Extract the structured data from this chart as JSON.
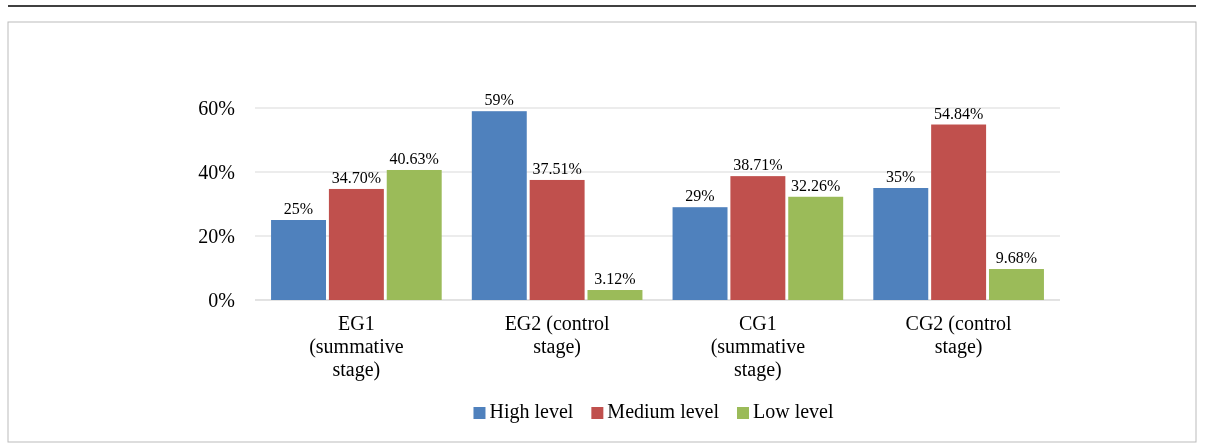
{
  "chart_data": {
    "type": "bar",
    "categories": [
      "EG1 (summative stage)",
      "EG2 (control stage)",
      "CG1 (summative stage)",
      "CG2 (control stage)"
    ],
    "series": [
      {
        "name": "High level",
        "color": "#4f81bd",
        "values": [
          25,
          59,
          29,
          35
        ],
        "value_labels": [
          "25%",
          "59%",
          "29%",
          "35%"
        ]
      },
      {
        "name": "Medium level",
        "color": "#c0504d",
        "values": [
          34.7,
          37.51,
          38.71,
          54.84
        ],
        "value_labels": [
          "34.70%",
          "37.51%",
          "38.71%",
          "54.84%"
        ]
      },
      {
        "name": "Low level",
        "color": "#9bbb59",
        "values": [
          40.63,
          3.12,
          32.26,
          9.68
        ],
        "value_labels": [
          "40.63%",
          "3.12%",
          "32.26%",
          "9.68%"
        ]
      }
    ],
    "ylim": [
      0,
      60
    ],
    "yticks": [
      {
        "value": 0,
        "label": "0%"
      },
      {
        "value": 20,
        "label": "20%"
      },
      {
        "value": 40,
        "label": "40%"
      },
      {
        "value": 60,
        "label": "60%"
      }
    ],
    "grid": "y",
    "legend": "bottom"
  }
}
